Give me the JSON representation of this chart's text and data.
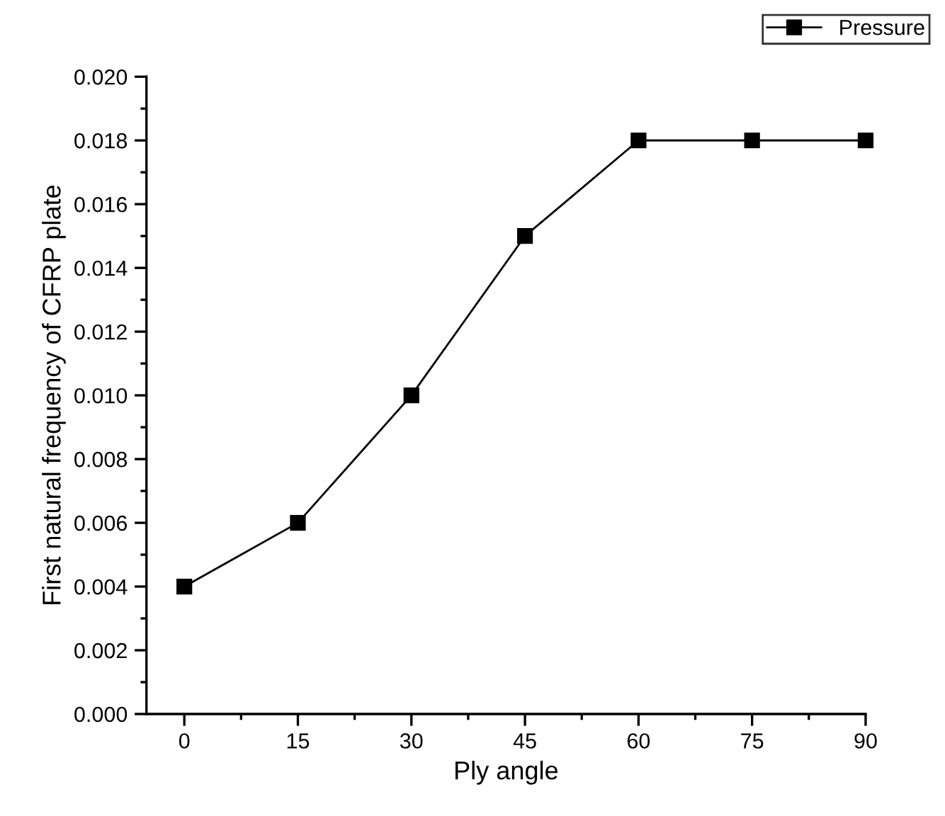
{
  "chart_data": {
    "type": "line",
    "xlabel": "Ply angle",
    "ylabel": "First natural frequency of CFRP plate",
    "x": [
      0,
      15,
      30,
      45,
      60,
      75,
      90
    ],
    "series": [
      {
        "name": "Pressure",
        "color": "#000000",
        "values": [
          0.004,
          0.006,
          0.01,
          0.015,
          0.018,
          0.018,
          0.018
        ]
      }
    ],
    "marker": "square",
    "line_style": "solid",
    "xlim": [
      -5,
      90
    ],
    "xticks": [
      0,
      15,
      30,
      45,
      60,
      75,
      90
    ],
    "ylim": [
      0,
      0.02
    ],
    "yticks": [
      {
        "value": 0,
        "label": "0.000"
      },
      {
        "value": 0.002,
        "label": "0.002"
      },
      {
        "value": 0.004,
        "label": "0.004"
      },
      {
        "value": 0.006,
        "label": "0.006"
      },
      {
        "value": 0.008,
        "label": "0.008"
      },
      {
        "value": 0.01,
        "label": "0.010"
      },
      {
        "value": 0.012,
        "label": "0.012"
      },
      {
        "value": 0.014,
        "label": "0.014"
      },
      {
        "value": 0.016,
        "label": "0.016"
      },
      {
        "value": 0.018,
        "label": "0.018"
      },
      {
        "value": 0.02,
        "label": "0.020"
      }
    ],
    "grid": false,
    "legend": "top right"
  }
}
